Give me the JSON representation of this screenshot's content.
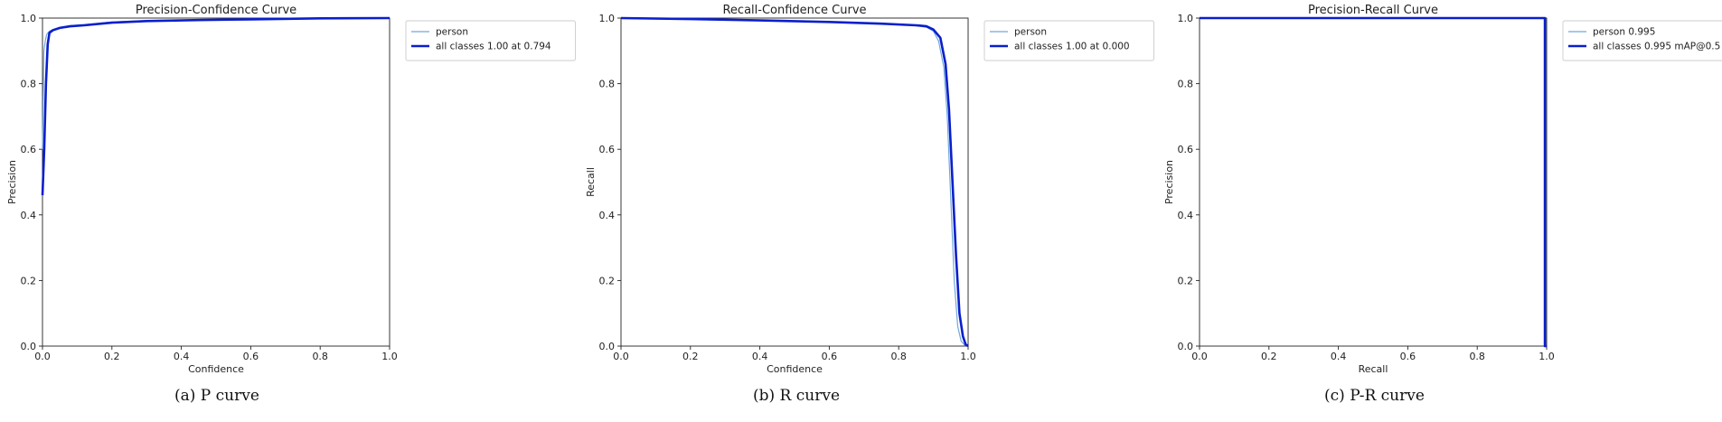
{
  "chart_data": [
    {
      "type": "line",
      "title": "Precision-Confidence Curve",
      "xlabel": "Confidence",
      "ylabel": "Precision",
      "xlim": [
        0,
        1
      ],
      "ylim": [
        0,
        1
      ],
      "xticks": [
        "0.0",
        "0.2",
        "0.4",
        "0.6",
        "0.8",
        "1.0"
      ],
      "yticks": [
        "0.0",
        "0.2",
        "0.4",
        "0.6",
        "0.8",
        "1.0"
      ],
      "grid": false,
      "legend": "outside-top-right",
      "caption": "(a) P curve",
      "series": [
        {
          "name": "person",
          "color": "#6fa8dc",
          "width": 1.2,
          "x": [
            0,
            0.004,
            0.008,
            0.012,
            0.02,
            0.03,
            0.05,
            0.08,
            0.12,
            0.2,
            0.3,
            0.45,
            0.6,
            0.8,
            1.0
          ],
          "y": [
            0.6,
            0.9,
            0.93,
            0.95,
            0.96,
            0.965,
            0.972,
            0.977,
            0.98,
            0.988,
            0.992,
            0.995,
            0.997,
            0.999,
            1.0
          ]
        },
        {
          "name": "all classes 1.00 at 0.794",
          "color": "#0a1fcc",
          "width": 2.6,
          "x": [
            0,
            0.005,
            0.01,
            0.015,
            0.02,
            0.03,
            0.05,
            0.08,
            0.12,
            0.2,
            0.3,
            0.45,
            0.6,
            0.8,
            1.0
          ],
          "y": [
            0.46,
            0.6,
            0.8,
            0.92,
            0.955,
            0.963,
            0.97,
            0.975,
            0.978,
            0.986,
            0.991,
            0.994,
            0.996,
            0.999,
            1.0
          ]
        }
      ]
    },
    {
      "type": "line",
      "title": "Recall-Confidence Curve",
      "xlabel": "Confidence",
      "ylabel": "Recall",
      "xlim": [
        0,
        1
      ],
      "ylim": [
        0,
        1
      ],
      "xticks": [
        "0.0",
        "0.2",
        "0.4",
        "0.6",
        "0.8",
        "1.0"
      ],
      "yticks": [
        "0.0",
        "0.2",
        "0.4",
        "0.6",
        "0.8",
        "1.0"
      ],
      "grid": false,
      "legend": "outside-top-right",
      "caption": "(b) R curve",
      "series": [
        {
          "name": "person",
          "color": "#6fa8dc",
          "width": 1.2,
          "x": [
            0,
            0.2,
            0.4,
            0.6,
            0.75,
            0.85,
            0.88,
            0.9,
            0.915,
            0.93,
            0.94,
            0.95,
            0.96,
            0.97,
            0.98,
            0.99,
            1.0
          ],
          "y": [
            1.0,
            0.997,
            0.993,
            0.988,
            0.983,
            0.977,
            0.972,
            0.96,
            0.93,
            0.85,
            0.7,
            0.45,
            0.2,
            0.06,
            0.015,
            0.003,
            0.0
          ]
        },
        {
          "name": "all classes 1.00 at 0.000",
          "color": "#0a1fcc",
          "width": 2.6,
          "x": [
            0,
            0.2,
            0.4,
            0.6,
            0.75,
            0.85,
            0.88,
            0.9,
            0.92,
            0.935,
            0.945,
            0.955,
            0.965,
            0.975,
            0.985,
            0.993,
            1.0
          ],
          "y": [
            1.0,
            0.997,
            0.993,
            0.988,
            0.983,
            0.978,
            0.975,
            0.965,
            0.94,
            0.86,
            0.72,
            0.5,
            0.28,
            0.1,
            0.03,
            0.005,
            0.0
          ]
        }
      ]
    },
    {
      "type": "line",
      "title": "Precision-Recall Curve",
      "xlabel": "Recall",
      "ylabel": "Precision",
      "xlim": [
        0,
        1
      ],
      "ylim": [
        0,
        1
      ],
      "xticks": [
        "0.0",
        "0.2",
        "0.4",
        "0.6",
        "0.8",
        "1.0"
      ],
      "yticks": [
        "0.0",
        "0.2",
        "0.4",
        "0.6",
        "0.8",
        "1.0"
      ],
      "grid": false,
      "legend": "outside-top-right",
      "caption": "(c) P-R curve",
      "series": [
        {
          "name": "person 0.995",
          "color": "#6fa8dc",
          "width": 1.2,
          "x": [
            0,
            0.99,
            0.995,
            0.995,
            1.0
          ],
          "y": [
            1.0,
            1.0,
            1.0,
            0.0,
            0.0
          ]
        },
        {
          "name": "all classes 0.995 mAP@0.5",
          "color": "#0a1fcc",
          "width": 2.6,
          "x": [
            0,
            0.99,
            0.995,
            0.995,
            1.0
          ],
          "y": [
            1.0,
            1.0,
            1.0,
            0.0,
            0.0
          ]
        }
      ]
    }
  ]
}
